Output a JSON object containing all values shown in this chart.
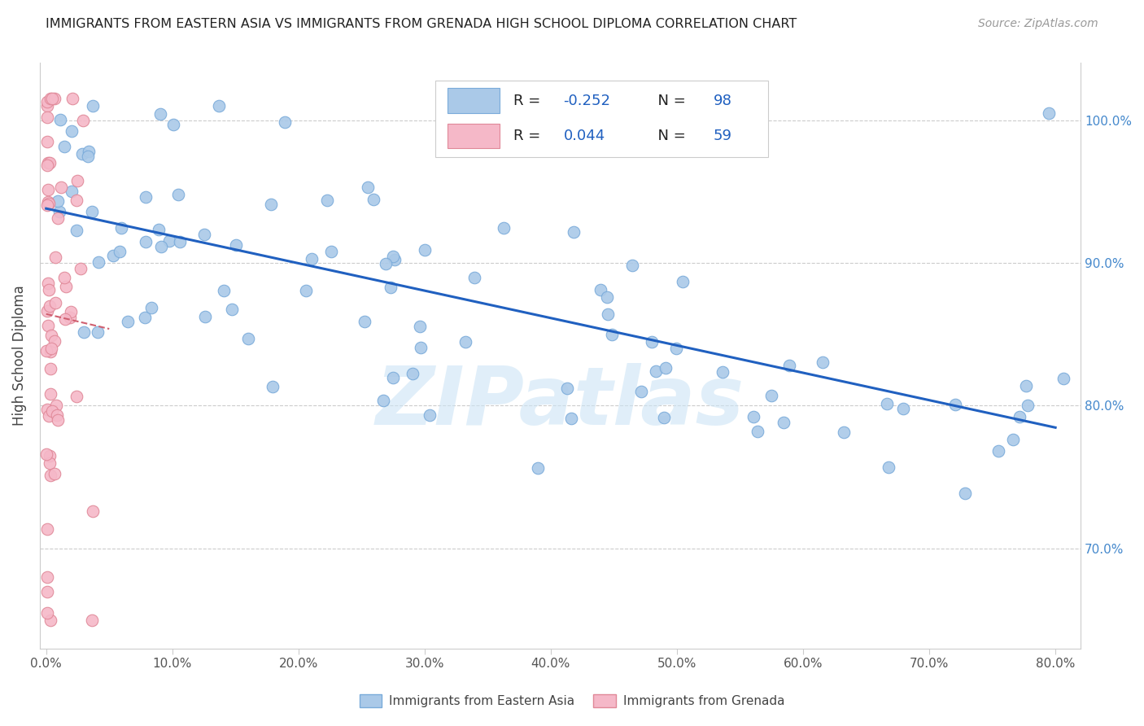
{
  "title": "IMMIGRANTS FROM EASTERN ASIA VS IMMIGRANTS FROM GRENADA HIGH SCHOOL DIPLOMA CORRELATION CHART",
  "source": "Source: ZipAtlas.com",
  "ylabel_label": "High School Diploma",
  "legend_labels": [
    "Immigrants from Eastern Asia",
    "Immigrants from Grenada"
  ],
  "r_eastern_asia": -0.252,
  "n_eastern_asia": 98,
  "r_grenada": 0.044,
  "n_grenada": 59,
  "color_blue": "#aac9e8",
  "color_pink": "#f5b8c8",
  "trendline_blue": "#2060c0",
  "trendline_pink": "#d06070",
  "watermark": "ZIPatlas",
  "xlim": [
    -0.5,
    82
  ],
  "ylim": [
    63,
    104
  ],
  "x_ticks": [
    0,
    10,
    20,
    30,
    40,
    50,
    60,
    70,
    80
  ],
  "y_ticks": [
    70,
    80,
    90,
    100
  ],
  "title_fontsize": 11.5,
  "tick_fontsize": 11,
  "label_fontsize": 12,
  "legend_fontsize": 13
}
